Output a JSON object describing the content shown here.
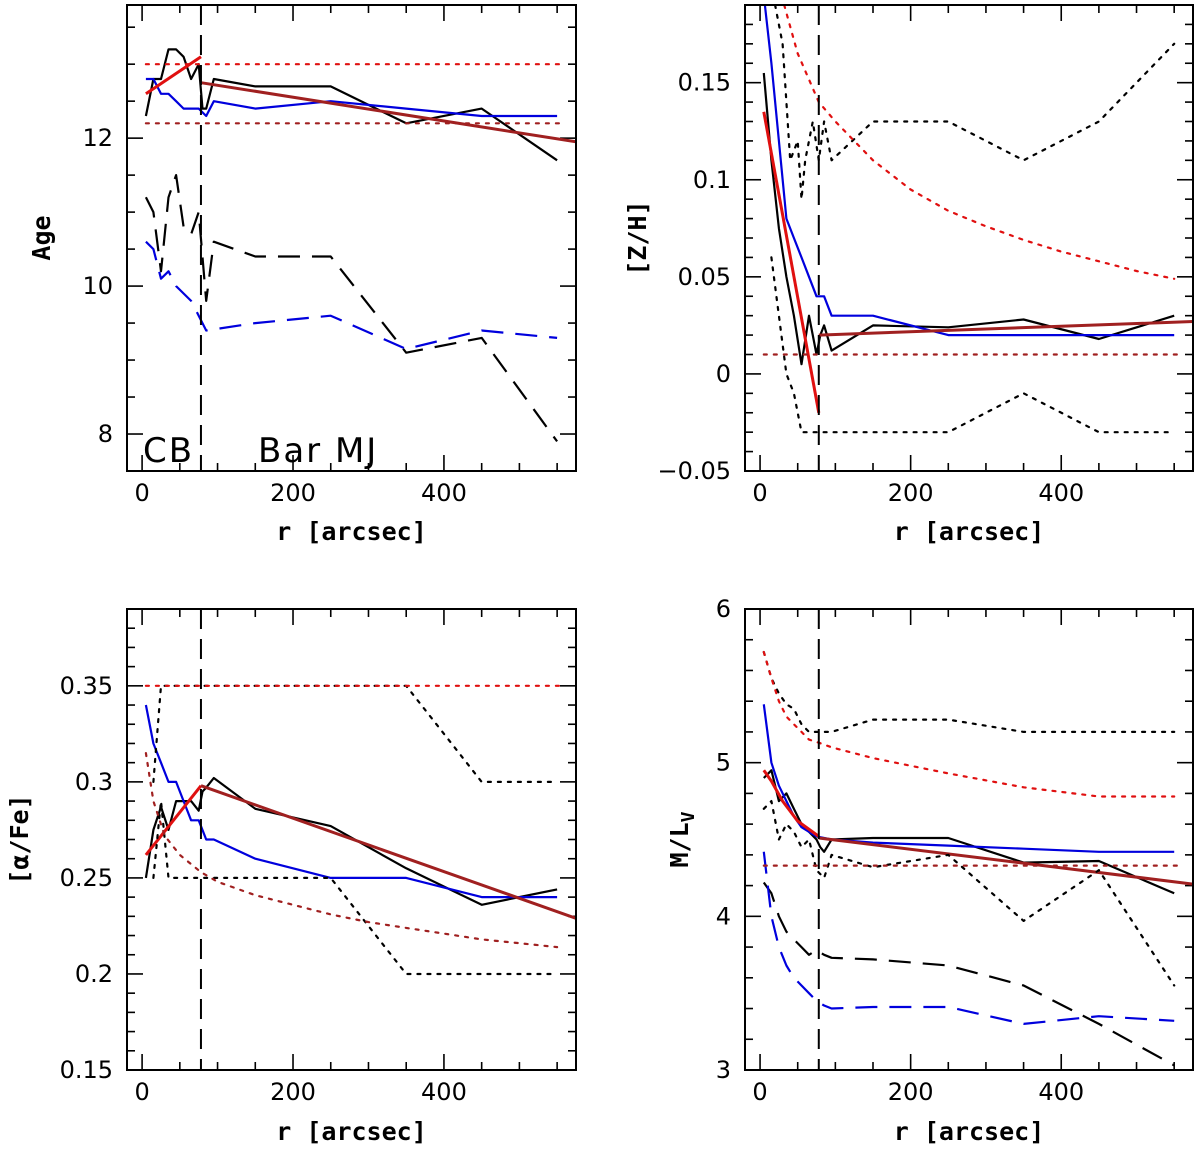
{
  "chart_data": [
    {
      "type": "line",
      "id": "age",
      "xlabel": "r [arcsec]",
      "ylabel": "Age",
      "xlim": [
        -20,
        575
      ],
      "ylim": [
        7.5,
        13.8
      ],
      "xticks": [
        0,
        200,
        400
      ],
      "xtick_labels": [
        "0",
        "200",
        "400"
      ],
      "yticks": [
        8,
        10,
        12
      ],
      "ytick_labels": [
        "8",
        "10",
        "12"
      ],
      "x_minor_step": 50,
      "y_minor_step": 0.5,
      "vline": 78,
      "annotations": [
        "CB",
        "Bar MJ"
      ],
      "series": [
        {
          "name": "black solid",
          "color": "#000000",
          "dash": "solid",
          "x": [
            5,
            15,
            25,
            35,
            45,
            55,
            65,
            75,
            80,
            85,
            95,
            150,
            250,
            350,
            450,
            550
          ],
          "y": [
            12.3,
            12.8,
            12.8,
            13.2,
            13.2,
            13.1,
            12.8,
            13.0,
            12.4,
            12.4,
            12.8,
            12.7,
            12.7,
            12.2,
            12.4,
            11.7
          ]
        },
        {
          "name": "blue solid",
          "color": "#0000dd",
          "dash": "solid",
          "x": [
            5,
            15,
            25,
            35,
            45,
            55,
            65,
            75,
            85,
            95,
            150,
            250,
            350,
            450,
            550
          ],
          "y": [
            12.8,
            12.8,
            12.6,
            12.6,
            12.5,
            12.4,
            12.4,
            12.4,
            12.3,
            12.5,
            12.4,
            12.5,
            12.4,
            12.3,
            12.3
          ]
        },
        {
          "name": "black dashed",
          "color": "#000000",
          "dash": "long",
          "x": [
            5,
            15,
            25,
            35,
            45,
            55,
            65,
            75,
            85,
            95,
            150,
            250,
            350,
            450,
            550
          ],
          "y": [
            11.2,
            11.0,
            10.2,
            11.2,
            11.5,
            10.8,
            10.7,
            11.0,
            9.8,
            10.6,
            10.4,
            10.4,
            9.1,
            9.3,
            7.9
          ]
        },
        {
          "name": "blue dashed",
          "color": "#0000dd",
          "dash": "long",
          "x": [
            5,
            15,
            25,
            35,
            45,
            55,
            65,
            75,
            85,
            150,
            250,
            350,
            450,
            550
          ],
          "y": [
            10.6,
            10.5,
            10.1,
            10.2,
            10.0,
            9.9,
            9.8,
            9.6,
            9.4,
            9.5,
            9.6,
            9.15,
            9.4,
            9.3
          ]
        },
        {
          "name": "red solid fit",
          "color": "#e01010",
          "dash": "solid",
          "width": 3,
          "x": [
            5,
            78
          ],
          "y": [
            12.6,
            13.1
          ]
        },
        {
          "name": "brown solid fit",
          "color": "#a02020",
          "dash": "solid",
          "width": 3,
          "x": [
            78,
            575
          ],
          "y": [
            12.75,
            11.95
          ]
        },
        {
          "name": "red dotted",
          "color": "#e01010",
          "dash": "dot",
          "x": [
            5,
            560
          ],
          "y": [
            13.0,
            13.0
          ]
        },
        {
          "name": "brown dotted",
          "color": "#a02020",
          "dash": "dot",
          "x": [
            5,
            560
          ],
          "y": [
            12.2,
            12.2
          ]
        }
      ]
    },
    {
      "type": "line",
      "id": "metallicity",
      "xlabel": "r [arcsec]",
      "ylabel": "[Z/H]",
      "xlim": [
        -20,
        575
      ],
      "ylim": [
        -0.05,
        0.19
      ],
      "xticks": [
        0,
        200,
        400
      ],
      "xtick_labels": [
        "0",
        "200",
        "400"
      ],
      "yticks": [
        -0.05,
        0,
        0.05,
        0.1,
        0.15
      ],
      "ytick_labels": [
        "−0.05",
        "0",
        "0.05",
        "0.1",
        "0.15"
      ],
      "x_minor_step": 50,
      "y_minor_step": 0.01,
      "vline": 78,
      "annotations": [],
      "series": [
        {
          "name": "black solid",
          "color": "#000000",
          "dash": "solid",
          "x": [
            5,
            15,
            25,
            35,
            45,
            55,
            65,
            75,
            80,
            85,
            95,
            150,
            250,
            350,
            450,
            550
          ],
          "y": [
            0.155,
            0.11,
            0.075,
            0.05,
            0.03,
            0.005,
            0.03,
            0.01,
            0.02,
            0.025,
            0.012,
            0.025,
            0.024,
            0.028,
            0.018,
            0.03
          ]
        },
        {
          "name": "blue solid",
          "color": "#0000dd",
          "dash": "solid",
          "x": [
            5,
            15,
            25,
            35,
            45,
            55,
            65,
            75,
            85,
            95,
            150,
            250,
            350,
            450,
            550
          ],
          "y": [
            0.195,
            0.16,
            0.12,
            0.08,
            0.07,
            0.06,
            0.05,
            0.04,
            0.04,
            0.03,
            0.03,
            0.02,
            0.02,
            0.02,
            0.02
          ]
        },
        {
          "name": "red solid fit",
          "color": "#e01010",
          "dash": "solid",
          "width": 3,
          "x": [
            5,
            78
          ],
          "y": [
            0.135,
            -0.02
          ]
        },
        {
          "name": "brown solid fit",
          "color": "#a02020",
          "dash": "solid",
          "width": 3,
          "x": [
            78,
            575
          ],
          "y": [
            0.02,
            0.027
          ]
        },
        {
          "name": "black dotted upper",
          "color": "#000000",
          "dash": "dot",
          "x": [
            20,
            30,
            40,
            50,
            55,
            60,
            70,
            78,
            85,
            95,
            150,
            250,
            350,
            450,
            550
          ],
          "y": [
            0.19,
            0.17,
            0.11,
            0.12,
            0.09,
            0.11,
            0.13,
            0.11,
            0.13,
            0.11,
            0.13,
            0.13,
            0.11,
            0.13,
            0.17
          ]
        },
        {
          "name": "black dotted lower",
          "color": "#000000",
          "dash": "dot",
          "x": [
            15,
            25,
            35,
            45,
            55,
            65,
            75,
            150,
            250,
            350,
            450,
            550
          ],
          "y": [
            0.06,
            0.03,
            0.0,
            -0.01,
            -0.03,
            -0.03,
            -0.03,
            -0.03,
            -0.03,
            -0.01,
            -0.03,
            -0.03
          ]
        },
        {
          "name": "red dotted",
          "color": "#e01010",
          "dash": "dot",
          "x": [
            32,
            50,
            78,
            100,
            150,
            200,
            250,
            300,
            350,
            400,
            450,
            500,
            550
          ],
          "y": [
            0.19,
            0.165,
            0.14,
            0.13,
            0.11,
            0.095,
            0.084,
            0.076,
            0.069,
            0.063,
            0.058,
            0.053,
            0.049
          ]
        },
        {
          "name": "brown dotted",
          "color": "#a02020",
          "dash": "dot",
          "x": [
            5,
            560
          ],
          "y": [
            0.01,
            0.01
          ]
        }
      ]
    },
    {
      "type": "line",
      "id": "alpha-fe",
      "xlabel": "r [arcsec]",
      "ylabel": "[α/Fe]",
      "xlim": [
        -20,
        575
      ],
      "ylim": [
        0.15,
        0.39
      ],
      "xticks": [
        0,
        200,
        400
      ],
      "xtick_labels": [
        "0",
        "200",
        "400"
      ],
      "yticks": [
        0.15,
        0.2,
        0.25,
        0.3,
        0.35
      ],
      "ytick_labels": [
        "0.15",
        "0.2",
        "0.25",
        "0.3",
        "0.35"
      ],
      "x_minor_step": 50,
      "y_minor_step": 0.01,
      "vline": 78,
      "annotations": [],
      "series": [
        {
          "name": "black solid",
          "color": "#000000",
          "dash": "solid",
          "x": [
            5,
            15,
            25,
            35,
            45,
            55,
            65,
            75,
            80,
            85,
            95,
            150,
            250,
            350,
            450,
            550
          ],
          "y": [
            0.25,
            0.275,
            0.287,
            0.275,
            0.29,
            0.29,
            0.29,
            0.285,
            0.295,
            0.297,
            0.302,
            0.286,
            0.277,
            0.255,
            0.236,
            0.244
          ]
        },
        {
          "name": "blue solid",
          "color": "#0000dd",
          "dash": "solid",
          "x": [
            5,
            15,
            25,
            35,
            45,
            55,
            65,
            75,
            85,
            95,
            150,
            250,
            350,
            450,
            550
          ],
          "y": [
            0.34,
            0.32,
            0.31,
            0.3,
            0.3,
            0.29,
            0.28,
            0.28,
            0.27,
            0.27,
            0.26,
            0.25,
            0.25,
            0.24,
            0.24
          ]
        },
        {
          "name": "red solid fit",
          "color": "#e01010",
          "dash": "solid",
          "width": 3,
          "x": [
            5,
            78
          ],
          "y": [
            0.262,
            0.298
          ]
        },
        {
          "name": "brown solid fit",
          "color": "#a02020",
          "dash": "solid",
          "width": 3,
          "x": [
            78,
            575
          ],
          "y": [
            0.298,
            0.229
          ]
        },
        {
          "name": "black dotted upper",
          "color": "#000000",
          "dash": "dot",
          "x": [
            15,
            25,
            350,
            450,
            550
          ],
          "y": [
            0.3,
            0.35,
            0.35,
            0.3,
            0.3
          ]
        },
        {
          "name": "black dotted lower",
          "color": "#000000",
          "dash": "dot",
          "x": [
            15,
            25,
            35,
            250,
            350,
            450,
            550
          ],
          "y": [
            0.25,
            0.29,
            0.25,
            0.25,
            0.2,
            0.2,
            0.2
          ]
        },
        {
          "name": "red dotted",
          "color": "#e01010",
          "dash": "dot",
          "x": [
            5,
            560
          ],
          "y": [
            0.35,
            0.35
          ]
        },
        {
          "name": "brown dotted",
          "color": "#a02020",
          "dash": "dot",
          "x": [
            5,
            15,
            30,
            50,
            78,
            100,
            150,
            200,
            250,
            300,
            350,
            400,
            450,
            500,
            550
          ],
          "y": [
            0.315,
            0.29,
            0.272,
            0.262,
            0.253,
            0.248,
            0.241,
            0.236,
            0.231,
            0.227,
            0.224,
            0.221,
            0.218,
            0.216,
            0.214
          ]
        }
      ]
    },
    {
      "type": "line",
      "id": "mass-to-light",
      "xlabel": "r [arcsec]",
      "ylabel": "M/L",
      "ylabel_sub": "V",
      "xlim": [
        -20,
        575
      ],
      "ylim": [
        3.0,
        6.0
      ],
      "xticks": [
        0,
        200,
        400
      ],
      "xtick_labels": [
        "0",
        "200",
        "400"
      ],
      "yticks": [
        3,
        4,
        5,
        6
      ],
      "ytick_labels": [
        "3",
        "4",
        "5",
        "6"
      ],
      "x_minor_step": 50,
      "y_minor_step": 0.2,
      "vline": 78,
      "annotations": [],
      "series": [
        {
          "name": "black solid",
          "color": "#000000",
          "dash": "solid",
          "x": [
            5,
            15,
            25,
            35,
            45,
            55,
            65,
            75,
            80,
            85,
            95,
            150,
            250,
            350,
            450,
            550
          ],
          "y": [
            4.9,
            4.95,
            4.75,
            4.8,
            4.7,
            4.6,
            4.55,
            4.5,
            4.45,
            4.42,
            4.5,
            4.51,
            4.51,
            4.35,
            4.36,
            4.15
          ]
        },
        {
          "name": "blue solid",
          "color": "#0000dd",
          "dash": "solid",
          "x": [
            5,
            15,
            25,
            35,
            45,
            55,
            65,
            75,
            85,
            95,
            150,
            250,
            350,
            450,
            550
          ],
          "y": [
            5.38,
            5.0,
            4.85,
            4.75,
            4.65,
            4.58,
            4.55,
            4.52,
            4.51,
            4.5,
            4.48,
            4.46,
            4.44,
            4.42,
            4.42
          ]
        },
        {
          "name": "black dashed",
          "color": "#000000",
          "dash": "long",
          "x": [
            5,
            15,
            25,
            35,
            45,
            55,
            65,
            75,
            85,
            95,
            150,
            250,
            350,
            450,
            550
          ],
          "y": [
            4.22,
            4.15,
            4.0,
            3.9,
            3.85,
            3.8,
            3.75,
            3.78,
            3.75,
            3.73,
            3.72,
            3.68,
            3.55,
            3.3,
            3.03
          ]
        },
        {
          "name": "blue dashed",
          "color": "#0000dd",
          "dash": "long",
          "x": [
            5,
            15,
            25,
            35,
            45,
            55,
            65,
            75,
            85,
            95,
            150,
            250,
            350,
            450,
            550
          ],
          "y": [
            4.42,
            4.0,
            3.8,
            3.68,
            3.6,
            3.55,
            3.5,
            3.45,
            3.42,
            3.4,
            3.41,
            3.41,
            3.3,
            3.35,
            3.32
          ]
        },
        {
          "name": "red solid fit",
          "color": "#e01010",
          "dash": "solid",
          "width": 3,
          "x": [
            5,
            15,
            30,
            50,
            78
          ],
          "y": [
            4.95,
            4.88,
            4.75,
            4.62,
            4.52
          ]
        },
        {
          "name": "brown solid fit",
          "color": "#a02020",
          "dash": "solid",
          "width": 3,
          "x": [
            78,
            575
          ],
          "y": [
            4.51,
            4.21
          ]
        },
        {
          "name": "black dotted upper",
          "color": "#000000",
          "dash": "dot",
          "x": [
            5,
            15,
            25,
            35,
            45,
            55,
            65,
            78,
            95,
            150,
            250,
            350,
            450,
            550
          ],
          "y": [
            5.72,
            5.55,
            5.45,
            5.38,
            5.35,
            5.25,
            5.2,
            5.2,
            5.2,
            5.28,
            5.28,
            5.2,
            5.2,
            5.2
          ]
        },
        {
          "name": "black dotted lower",
          "color": "#000000",
          "dash": "dot",
          "x": [
            5,
            15,
            25,
            35,
            45,
            55,
            65,
            75,
            85,
            95,
            150,
            250,
            350,
            450,
            550
          ],
          "y": [
            4.7,
            4.75,
            4.5,
            4.6,
            4.55,
            4.45,
            4.5,
            4.3,
            4.25,
            4.4,
            4.32,
            4.4,
            3.97,
            4.3,
            3.55
          ]
        },
        {
          "name": "red dotted",
          "color": "#e01010",
          "dash": "dot",
          "x": [
            5,
            15,
            25,
            35,
            45,
            55,
            65,
            78,
            95,
            150,
            250,
            350,
            450,
            550
          ],
          "y": [
            5.72,
            5.55,
            5.4,
            5.3,
            5.25,
            5.2,
            5.15,
            5.13,
            5.1,
            5.03,
            4.93,
            4.84,
            4.78,
            4.78
          ]
        },
        {
          "name": "brown dotted",
          "color": "#a02020",
          "dash": "dot",
          "x": [
            5,
            560
          ],
          "y": [
            4.33,
            4.33
          ]
        }
      ]
    }
  ]
}
